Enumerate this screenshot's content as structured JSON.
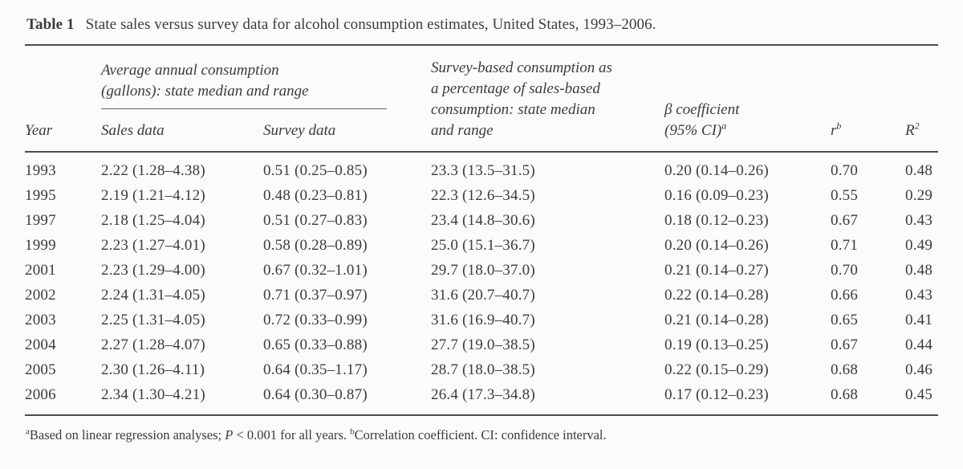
{
  "title": {
    "label": "Table 1",
    "text": "State sales versus survey data for alcohol consumption estimates, United States, 1993–2006."
  },
  "header": {
    "year": "Year",
    "consumption_group": {
      "line1": "Average annual consumption",
      "line2": "(gallons): state median and range"
    },
    "sales": "Sales data",
    "survey": "Survey data",
    "pct": {
      "line1": "Survey-based consumption as",
      "line2": "a percentage of sales-based",
      "line3": "consumption: state median",
      "line4": "and range"
    },
    "beta": {
      "line1": "β coefficient",
      "line2_base": "(95% CI)",
      "line2_sup": "a"
    },
    "r": {
      "base": "r",
      "sup": "b"
    },
    "r2": {
      "base": "R",
      "sup": "2"
    }
  },
  "rows": [
    {
      "year": "1993",
      "sales": "2.22 (1.28–4.38)",
      "survey": "0.51 (0.25–0.85)",
      "pct": "23.3 (13.5–31.5)",
      "beta": "0.20 (0.14–0.26)",
      "r": "0.70",
      "r2": "0.48"
    },
    {
      "year": "1995",
      "sales": "2.19 (1.21–4.12)",
      "survey": "0.48 (0.23–0.81)",
      "pct": "22.3 (12.6–34.5)",
      "beta": "0.16 (0.09–0.23)",
      "r": "0.55",
      "r2": "0.29"
    },
    {
      "year": "1997",
      "sales": "2.18 (1.25–4.04)",
      "survey": "0.51 (0.27–0.83)",
      "pct": "23.4 (14.8–30.6)",
      "beta": "0.18 (0.12–0.23)",
      "r": "0.67",
      "r2": "0.43"
    },
    {
      "year": "1999",
      "sales": "2.23 (1.27–4.01)",
      "survey": "0.58 (0.28–0.89)",
      "pct": "25.0 (15.1–36.7)",
      "beta": "0.20 (0.14–0.26)",
      "r": "0.71",
      "r2": "0.49"
    },
    {
      "year": "2001",
      "sales": "2.23 (1.29–4.00)",
      "survey": "0.67 (0.32–1.01)",
      "pct": "29.7 (18.0–37.0)",
      "beta": "0.21 (0.14–0.27)",
      "r": "0.70",
      "r2": "0.48"
    },
    {
      "year": "2002",
      "sales": "2.24 (1.31–4.05)",
      "survey": "0.71 (0.37–0.97)",
      "pct": "31.6 (20.7–40.7)",
      "beta": "0.22 (0.14–0.28)",
      "r": "0.66",
      "r2": "0.43"
    },
    {
      "year": "2003",
      "sales": "2.25 (1.31–4.05)",
      "survey": "0.72 (0.33–0.99)",
      "pct": "31.6 (16.9–40.7)",
      "beta": "0.21 (0.14–0.28)",
      "r": "0.65",
      "r2": "0.41"
    },
    {
      "year": "2004",
      "sales": "2.27 (1.28–4.07)",
      "survey": "0.65 (0.33–0.88)",
      "pct": "27.7 (19.0–38.5)",
      "beta": "0.19 (0.13–0.25)",
      "r": "0.67",
      "r2": "0.44"
    },
    {
      "year": "2005",
      "sales": "2.30 (1.26–4.11)",
      "survey": "0.64 (0.35–1.17)",
      "pct": "28.7 (18.0–38.5)",
      "beta": "0.22 (0.15–0.29)",
      "r": "0.68",
      "r2": "0.46"
    },
    {
      "year": "2006",
      "sales": "2.34 (1.30–4.21)",
      "survey": "0.64 (0.30–0.87)",
      "pct": "26.4 (17.3–34.8)",
      "beta": "0.17 (0.12–0.23)",
      "r": "0.68",
      "r2": "0.45"
    }
  ],
  "footnote": {
    "sup_a": "a",
    "part1": "Based on linear regression analyses; ",
    "p_italic": "P",
    "part2": " < 0.001 for all years. ",
    "sup_b": "b",
    "part3": "Correlation coefficient. CI: confidence interval."
  }
}
